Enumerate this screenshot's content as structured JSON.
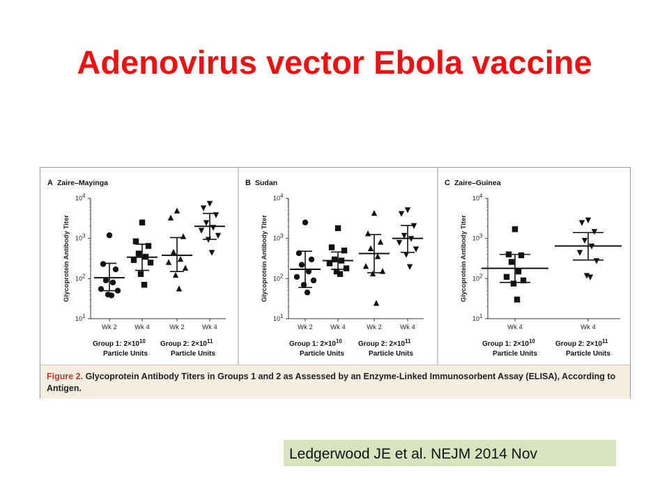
{
  "slide": {
    "title": "Adenovirus vector Ebola vaccine",
    "citation": "Ledgerwood JE et al. NEJM 2014 Nov"
  },
  "figure": {
    "caption_label": "Figure 2.",
    "caption_text": " Glycoprotein Antibody Titers in Groups 1 and 2 as Assessed by an Enzyme-Linked Immunosorbent Assay (ELISA), According to Antigen.",
    "y_axis_label": "Glycoprotein Antibody Titer",
    "y_ticks": [
      {
        "base": "10",
        "exp": "1",
        "value": 10
      },
      {
        "base": "10",
        "exp": "2",
        "value": 100
      },
      {
        "base": "10",
        "exp": "3",
        "value": 1000
      },
      {
        "base": "10",
        "exp": "4",
        "value": 10000
      }
    ],
    "group_labels": {
      "g1_line1_prefix": "Group 1: 2×10",
      "g1_line1_exp": "10",
      "g2_line1_prefix": "Group 2: 2×10",
      "g2_line1_exp": "11",
      "line2": "Particle Units"
    },
    "colors": {
      "marker": "#111111",
      "caption_bg": "#f4eee3",
      "caption_label": "#c0392b",
      "title": "#ee1111",
      "citation_bg": "#d7e4bd"
    }
  },
  "chart_data": [
    {
      "type": "scatter",
      "panel_letter": "A",
      "title": "Zaire–Mayinga",
      "y_scale": "log",
      "ylim": [
        10,
        10000
      ],
      "ylabel": "Glycoprotein Antibody Titer",
      "categories": [
        "Wk 2",
        "Wk 4",
        "Wk 2",
        "Wk 4"
      ],
      "groups": [
        {
          "label": "Group 1: 2×10^10 Particle Units",
          "category_indices": [
            0,
            1
          ]
        },
        {
          "label": "Group 2: 2×10^11 Particle Units",
          "category_indices": [
            2,
            3
          ]
        }
      ],
      "series": [
        {
          "category": 0,
          "marker": "circle",
          "values": [
            1200,
            230,
            170,
            90,
            80,
            55,
            50,
            40,
            38
          ],
          "center": 105,
          "lower": 50,
          "upper": 240
        },
        {
          "category": 1,
          "marker": "square",
          "values": [
            2500,
            850,
            650,
            420,
            350,
            290,
            250,
            130,
            70
          ],
          "center": 340,
          "lower": 160,
          "upper": 720
        },
        {
          "category": 2,
          "marker": "triangle-up",
          "values": [
            4800,
            3200,
            1100,
            450,
            300,
            250,
            180,
            120,
            55
          ],
          "center": 380,
          "lower": 150,
          "upper": 1050
        },
        {
          "category": 3,
          "marker": "triangle-down",
          "values": [
            7500,
            5800,
            3900,
            2500,
            1900,
            1600,
            1200,
            950,
            450
          ],
          "center": 2000,
          "lower": 950,
          "upper": 4200
        }
      ]
    },
    {
      "type": "scatter",
      "panel_letter": "B",
      "title": "Sudan",
      "y_scale": "log",
      "ylim": [
        10,
        10000
      ],
      "ylabel": "Glycoprotein Antibody Titer",
      "categories": [
        "Wk 2",
        "Wk 4",
        "Wk 2",
        "Wk 4"
      ],
      "groups": [
        {
          "label": "Group 1: 2×10^10 Particle Units",
          "category_indices": [
            0,
            1
          ]
        },
        {
          "label": "Group 2: 2×10^11 Particle Units",
          "category_indices": [
            2,
            3
          ]
        }
      ],
      "series": [
        {
          "category": 0,
          "marker": "circle",
          "values": [
            2500,
            430,
            300,
            220,
            150,
            110,
            90,
            70,
            45
          ],
          "center": 170,
          "lower": 60,
          "upper": 480
        },
        {
          "category": 1,
          "marker": "square",
          "values": [
            1800,
            600,
            500,
            300,
            280,
            240,
            180,
            150,
            130
          ],
          "center": 280,
          "lower": 170,
          "upper": 460
        },
        {
          "category": 2,
          "marker": "triangle-up",
          "values": [
            4200,
            1300,
            800,
            550,
            350,
            200,
            150,
            130,
            24
          ],
          "center": 420,
          "lower": 140,
          "upper": 1250
        },
        {
          "category": 3,
          "marker": "triangle-down",
          "values": [
            5200,
            4200,
            2100,
            1200,
            1000,
            800,
            550,
            400,
            200
          ],
          "center": 1000,
          "lower": 450,
          "upper": 2100
        }
      ]
    },
    {
      "type": "scatter",
      "panel_letter": "C",
      "title": "Zaire–Guinea",
      "y_scale": "log",
      "ylim": [
        10,
        10000
      ],
      "ylabel": "Glycoprotein Antibody Titer",
      "categories": [
        "Wk 4",
        "Wk 4"
      ],
      "groups": [
        {
          "label": "Group 1: 2×10^10 Particle Units",
          "category_indices": [
            0
          ]
        },
        {
          "label": "Group 2: 2×10^11 Particle Units",
          "category_indices": [
            1
          ]
        }
      ],
      "series": [
        {
          "category": 0,
          "marker": "square",
          "values": [
            1700,
            400,
            380,
            260,
            150,
            110,
            90,
            75,
            30
          ],
          "center": 180,
          "lower": 80,
          "upper": 400
        },
        {
          "category": 1,
          "marker": "triangle-down",
          "values": [
            2900,
            2500,
            1500,
            900,
            650,
            450,
            280,
            120,
            110
          ],
          "center": 650,
          "lower": 290,
          "upper": 1400
        }
      ]
    }
  ]
}
